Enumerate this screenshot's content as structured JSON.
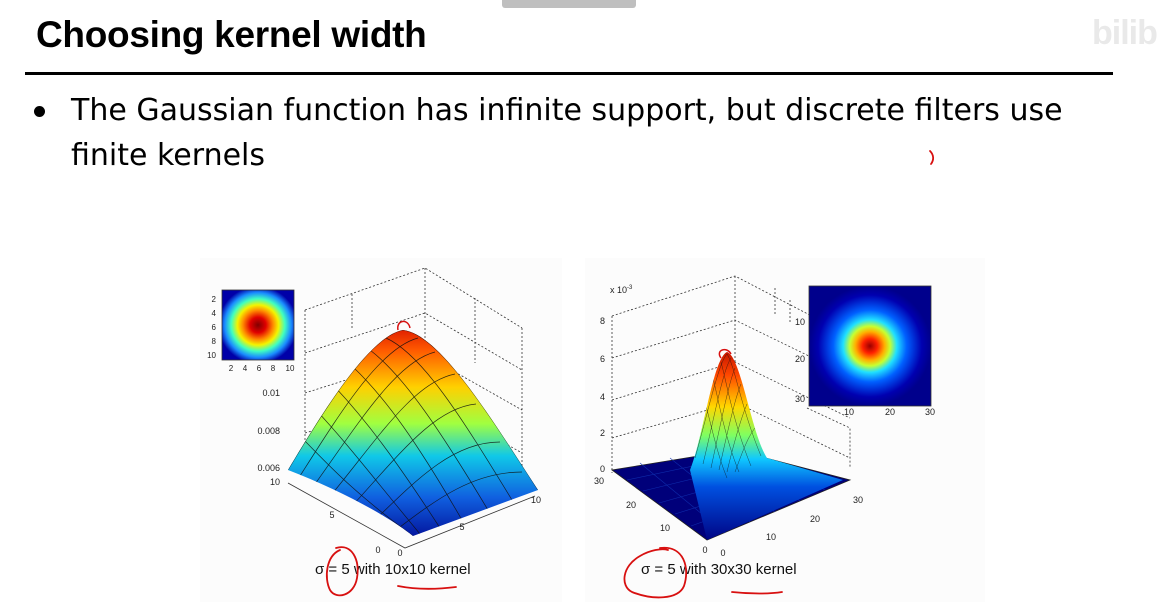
{
  "slide": {
    "title": "Choosing kernel width",
    "watermark": "bilib",
    "bullets": [
      "The Gaussian function has infinite support, but discrete filters use finite kernels"
    ]
  },
  "figures": {
    "left": {
      "caption": "σ = 5 with 10x10 kernel",
      "z_ticks": [
        "0.01",
        "0.008",
        "0.006"
      ],
      "x_ticks": [
        "0",
        "5",
        "10"
      ],
      "y_ticks": [
        "0",
        "5",
        "10"
      ],
      "inset_x_ticks": [
        "2",
        "4",
        "6",
        "8",
        "10"
      ],
      "inset_y_ticks": [
        "2",
        "4",
        "6",
        "8",
        "10"
      ]
    },
    "right": {
      "caption": "σ = 5 with 30x30 kernel",
      "z_multiplier": "x 10",
      "z_exponent": "-3",
      "z_ticks": [
        "0",
        "2",
        "4",
        "6",
        "8"
      ],
      "x_ticks": [
        "0",
        "10",
        "20",
        "30"
      ],
      "y_ticks": [
        "0",
        "10",
        "20",
        "30"
      ],
      "inset_x_ticks": [
        "10",
        "20",
        "30"
      ],
      "inset_y_ticks": [
        "10",
        "20",
        "30"
      ]
    }
  }
}
